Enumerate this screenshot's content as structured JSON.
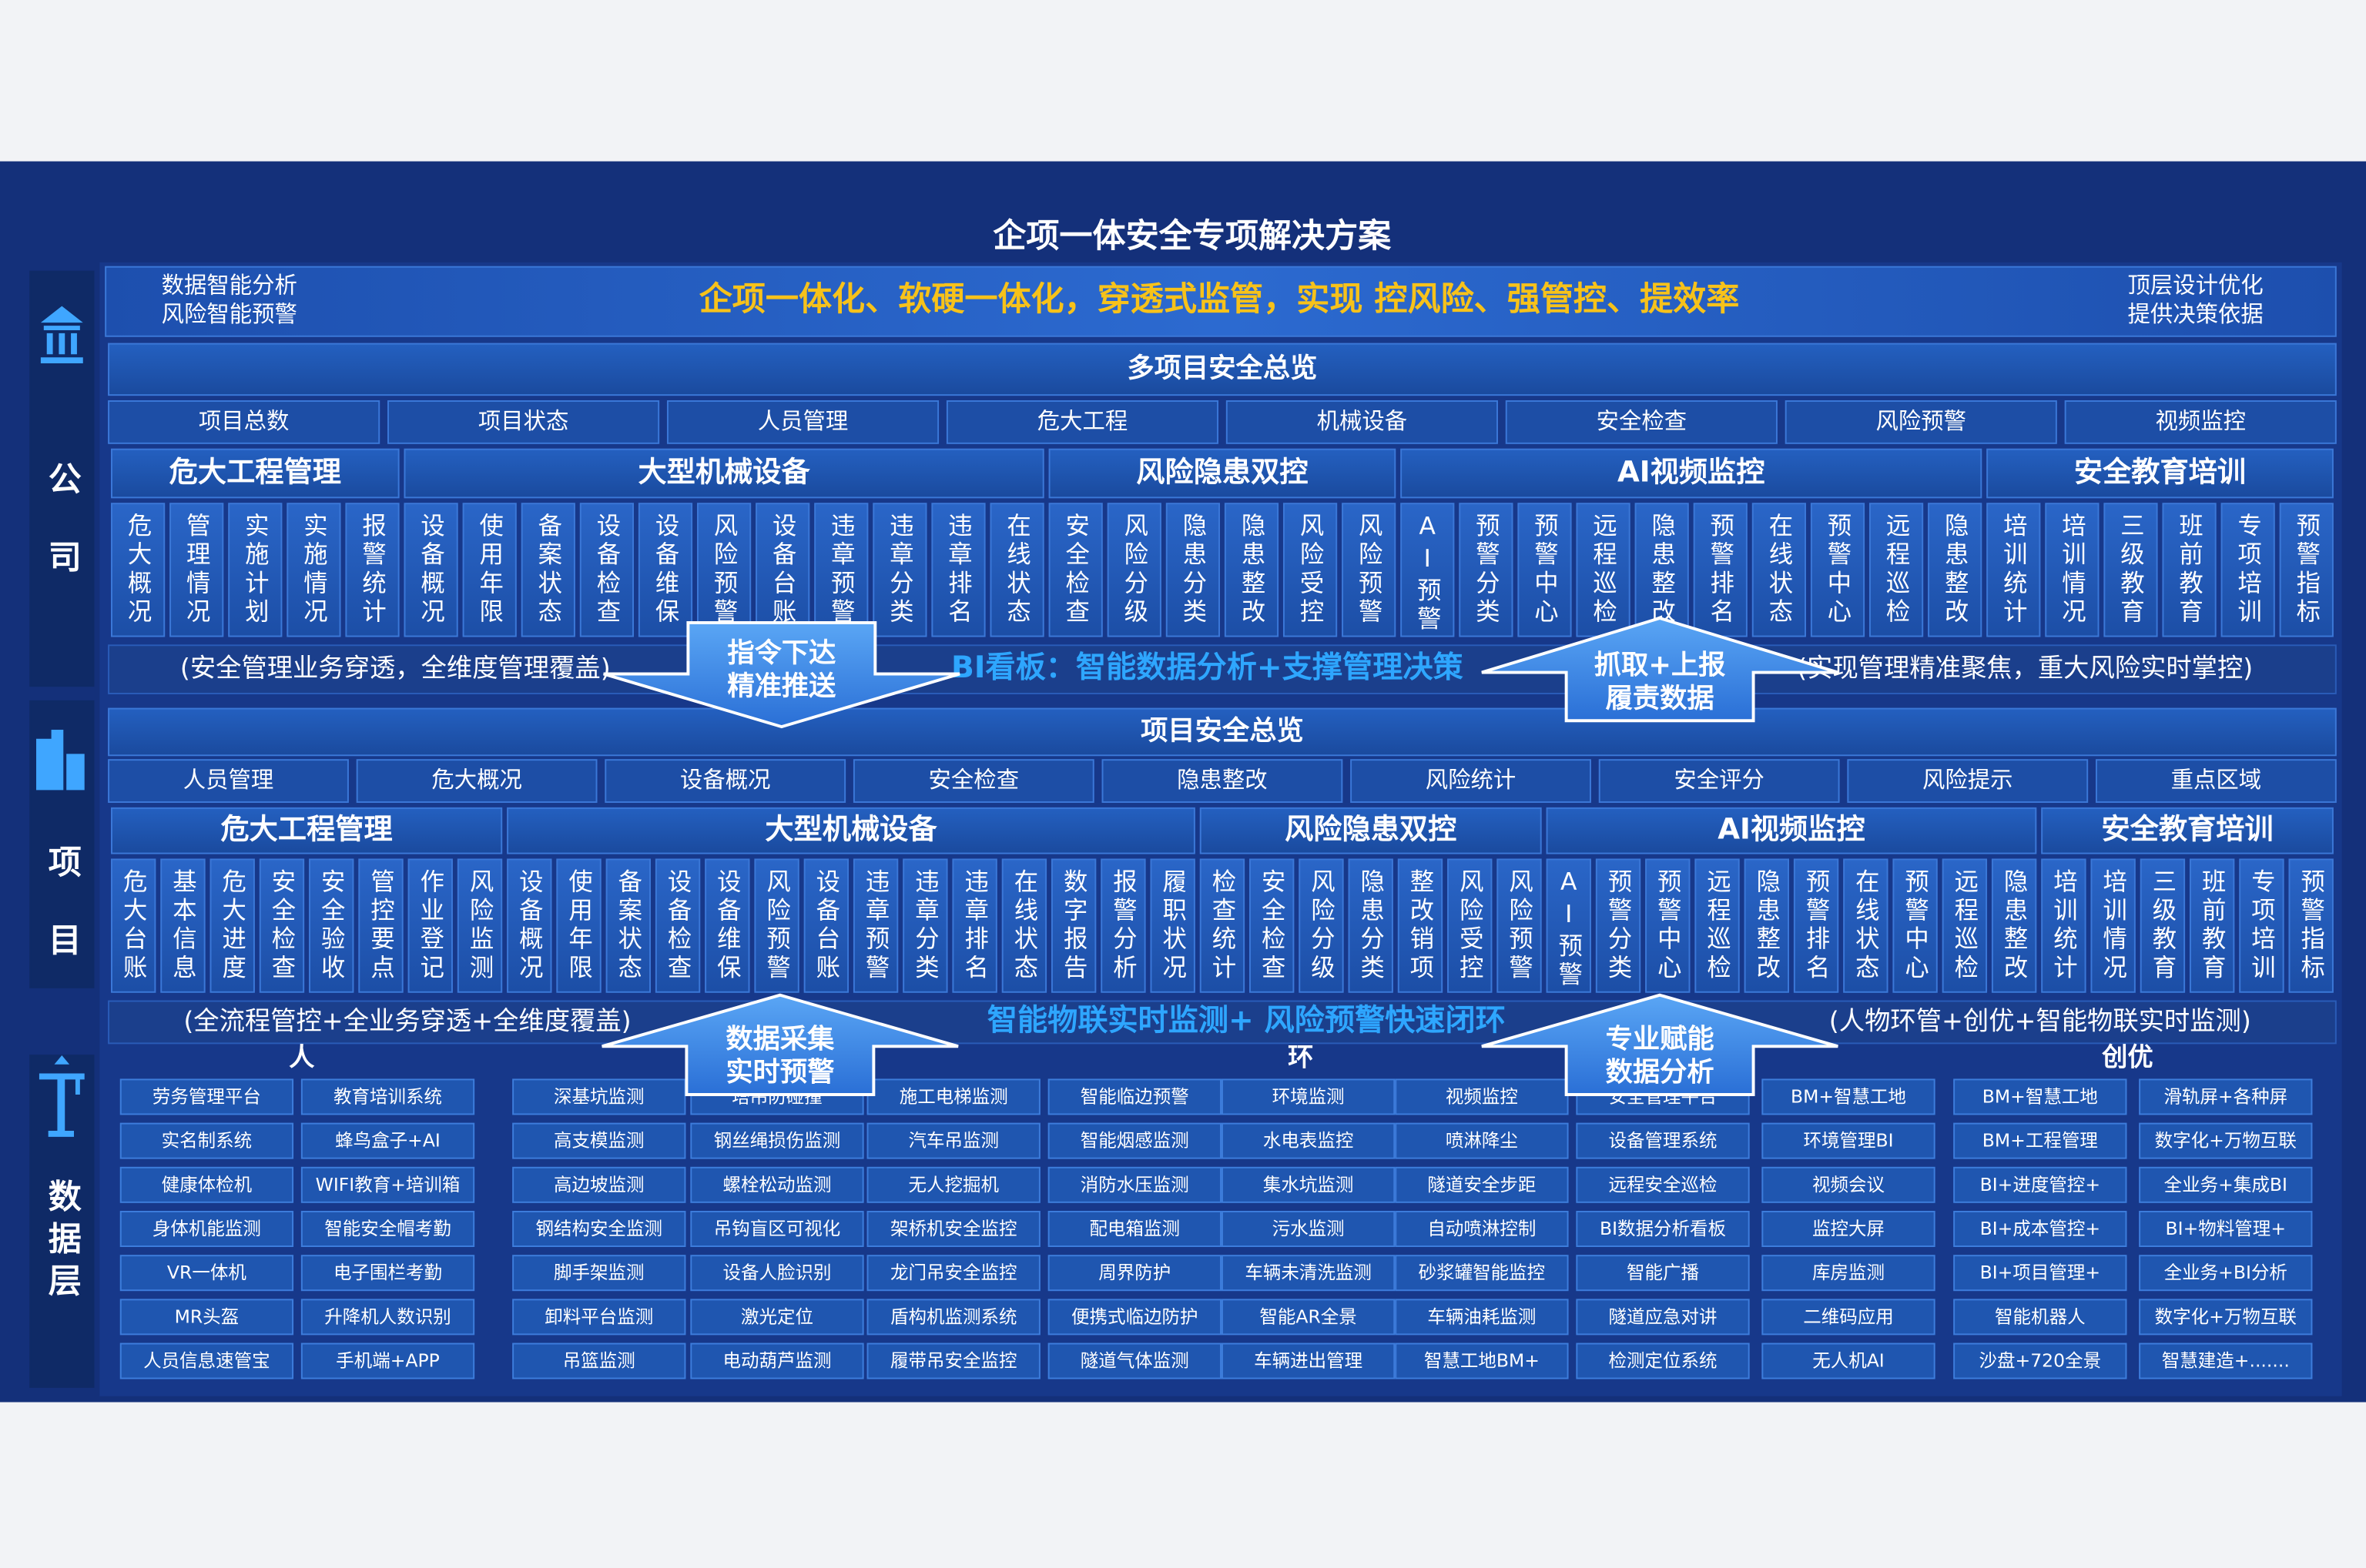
{
  "title": "企项一体安全专项解决方案",
  "sidebar": [
    "公司",
    "项目",
    "数据层"
  ],
  "banner": {
    "left": [
      "数据智能分析",
      "风险智能预警"
    ],
    "slogan": "企项一体化、软硬一体化，穿透式监管，实现 控风险、强管控、提效率",
    "right": [
      "顶层设计优化",
      "提供决策依据"
    ]
  },
  "company": {
    "overview": "多项目安全总览",
    "tabs": [
      "项目总数",
      "项目状态",
      "人员管理",
      "危大工程",
      "机械设备",
      "安全检查",
      "风险预警",
      "视频监控"
    ],
    "modules": [
      {
        "name": "危大工程管理",
        "items": [
          "危大概况",
          "管理情况",
          "实施计划",
          "实施情况",
          "报警统计"
        ]
      },
      {
        "name": "大型机械设备",
        "items": [
          "设备概况",
          "使用年限",
          "备案状态",
          "设备检查",
          "设备维保",
          "风险预警",
          "设备台账",
          "违章预警",
          "违章分类",
          "违章排名",
          "在线状态"
        ]
      },
      {
        "name": "风险隐患双控",
        "items": [
          "安全检查",
          "风险分级",
          "隐患分类",
          "隐患整改",
          "风险受控",
          "风险预警"
        ]
      },
      {
        "name": "AI视频监控",
        "items": [
          "AI预警",
          "预警分类",
          "预警中心",
          "远程巡检",
          "隐患整改",
          "预警排名",
          "在线状态",
          "预警中心",
          "远程巡检",
          "隐患整改"
        ]
      },
      {
        "name": "安全教育培训",
        "items": [
          "培训统计",
          "培训情况",
          "三级教育",
          "班前教育",
          "专项培训",
          "预警指标"
        ]
      }
    ],
    "band": {
      "left": "(安全管理业务穿透，全维度管理覆盖)",
      "center": "BI看板：智能数据分析+支撑管理决策",
      "right": "(实现管理精准聚焦，重大风险实时掌控)"
    },
    "arrows": [
      [
        "指令下达",
        "精准推送"
      ],
      [
        "抓取+上报",
        "履责数据"
      ]
    ]
  },
  "project": {
    "overview": "项目安全总览",
    "tabs": [
      "人员管理",
      "危大概况",
      "设备概况",
      "安全检查",
      "隐患整改",
      "风险统计",
      "安全评分",
      "风险提示",
      "重点区域"
    ],
    "modules": [
      {
        "name": "危大工程管理",
        "items": [
          "危大台账",
          "基本信息",
          "危大进度",
          "安全检查",
          "安全验收",
          "管控要点",
          "作业登记",
          "风险监测"
        ]
      },
      {
        "name": "大型机械设备",
        "items": [
          "设备概况",
          "使用年限",
          "备案状态",
          "设备检查",
          "设备维保",
          "风险预警",
          "设备台账",
          "违章预警",
          "违章分类",
          "违章排名",
          "在线状态",
          "数字报告",
          "报警分析",
          "履职状况"
        ]
      },
      {
        "name": "风险隐患双控",
        "items": [
          "检查统计",
          "安全检查",
          "风险分级",
          "隐患分类",
          "整改销项",
          "风险受控",
          "风险预警"
        ]
      },
      {
        "name": "AI视频监控",
        "items": [
          "AI预警",
          "预警分类",
          "预警中心",
          "远程巡检",
          "隐患整改",
          "预警排名",
          "在线状态",
          "预警中心",
          "远程巡检",
          "隐患整改"
        ]
      },
      {
        "name": "安全教育培训",
        "items": [
          "培训统计",
          "培训情况",
          "三级教育",
          "班前教育",
          "专项培训",
          "预警指标"
        ]
      }
    ],
    "band": {
      "left": "(全流程管控+全业务穿透+全维度覆盖)",
      "center": "智能物联实时监测+ 风险预警快速闭环",
      "right": "(人物环管+创优+智能物联实时监测)"
    },
    "arrows": [
      [
        "数据采集",
        "实时预警"
      ],
      [
        "专业赋能",
        "数据分析"
      ]
    ]
  },
  "data_layer": {
    "groups": [
      "人",
      "环",
      "创优"
    ],
    "columns": [
      [
        "劳务管理平台",
        "实名制系统",
        "健康体检机",
        "身体机能监测",
        "VR一体机",
        "MR头盔",
        "人员信息速管宝"
      ],
      [
        "教育培训系统",
        "蜂鸟盒子+AI",
        "WIFI教育+培训箱",
        "智能安全帽考勤",
        "电子围栏考勤",
        "升降机人数识别",
        "手机端+APP"
      ],
      [
        "深基坑监测",
        "高支模监测",
        "高边坡监测",
        "钢结构安全监测",
        "脚手架监测",
        "卸料平台监测",
        "吊篮监测"
      ],
      [
        "塔吊防碰撞",
        "钢丝绳损伤监测",
        "螺栓松动监测",
        "吊钩盲区可视化",
        "设备人脸识别",
        "激光定位",
        "电动葫芦监测"
      ],
      [
        "施工电梯监测",
        "汽车吊监测",
        "无人挖掘机",
        "架桥机安全监控",
        "龙门吊安全监控",
        "盾构机监测系统",
        "履带吊安全监控"
      ],
      [
        "智能临边预警",
        "智能烟感监测",
        "消防水压监测",
        "配电箱监测",
        "周界防护",
        "便携式临边防护",
        "隧道气体监测"
      ],
      [
        "环境监测",
        "水电表监控",
        "集水坑监测",
        "污水监测",
        "车辆未清洗监测",
        "智能AR全景",
        "车辆进出管理"
      ],
      [
        "视频监控",
        "喷淋降尘",
        "隧道安全步距",
        "自动喷淋控制",
        "砂浆罐智能监控",
        "车辆油耗监测",
        "智慧工地BM+"
      ],
      [
        "安全管理平台",
        "设备管理系统",
        "远程安全巡检",
        "BI数据分析看板",
        "智能广播",
        "隧道应急对讲",
        "检测定位系统"
      ],
      [
        "BM+智慧工地",
        "环境管理BI",
        "视频会议",
        "监控大屏",
        "库房监测",
        "二维码应用",
        "无人机AI"
      ],
      [
        "BM+智慧工地",
        "BM+工程管理",
        "BI+进度管控+",
        "BI+成本管控+",
        "BI+项目管理+",
        "智能机器人",
        "沙盘+720全景"
      ],
      [
        "滑轨屏+各种屏",
        "数字化+万物互联",
        "全业务+集成BI",
        "BI+物料管理+",
        "全业务+BI分析",
        "数字化+万物互联",
        "智慧建造+......."
      ]
    ]
  }
}
